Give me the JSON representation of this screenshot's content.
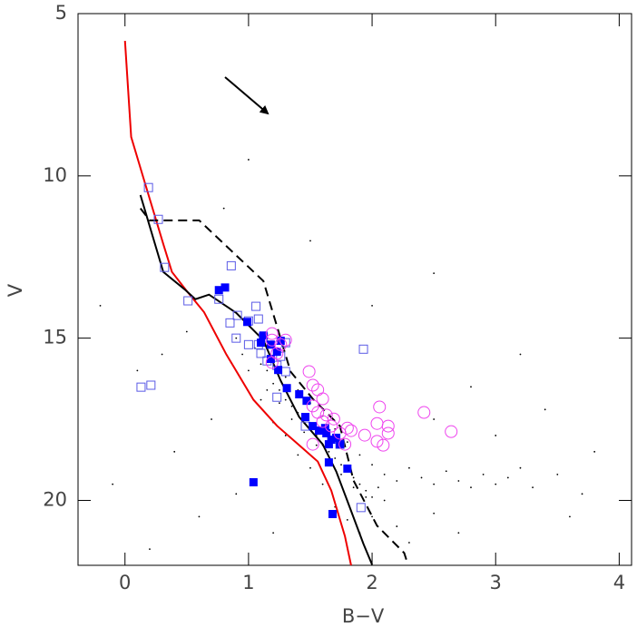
{
  "chart_data": {
    "type": "scatter",
    "x_label": "B−V",
    "y_label": "V",
    "xlim": [
      -0.38,
      4.1
    ],
    "ylim": [
      22,
      5
    ],
    "xticks": [
      0,
      1,
      2,
      3,
      4
    ],
    "yticks": [
      5,
      10,
      15,
      20
    ],
    "series": [
      {
        "color": "#000000",
        "marker": "dot",
        "x": [
          1.05,
          1.1,
          1.15,
          1.2,
          1.25,
          1.3,
          1.35,
          1.4,
          1.45,
          1.5,
          1.55,
          1.6,
          1.65,
          1.7,
          1.75,
          1.8,
          1.85,
          1.9,
          1.95,
          2.0,
          1.15,
          1.25,
          1.35,
          1.45,
          1.55,
          1.65,
          1.75,
          1.85,
          1.95,
          2.05,
          1.3,
          1.4,
          1.5,
          1.6,
          1.7,
          1.8,
          1.9,
          2.0,
          2.1,
          2.2,
          2.3,
          2.4,
          2.5,
          2.6,
          2.7,
          2.8,
          2.9,
          3.0,
          3.1,
          3.2,
          3.3,
          3.5,
          3.7,
          0.9,
          0.95,
          1.0,
          1.1,
          1.2,
          1.3,
          1.4,
          1.5,
          1.6,
          1.7,
          1.8,
          1.9,
          2.0,
          2.1,
          2.2,
          2.3,
          2.5,
          0.5,
          0.3,
          0.1,
          -0.2,
          0.7,
          0.4,
          0.9,
          0.6,
          1.2,
          2.5,
          2.8,
          3.0,
          3.4,
          3.8,
          2.0,
          1.5,
          0.8,
          2.5,
          3.2,
          1.0,
          3.6,
          -0.1,
          0.2,
          2.7
        ],
        "values": [
          15.3,
          15.8,
          16.0,
          16.4,
          16.6,
          16.9,
          17.1,
          17.3,
          17.6,
          17.8,
          18.0,
          18.3,
          18.5,
          18.7,
          18.9,
          19.1,
          19.3,
          19.5,
          19.7,
          19.9,
          16.6,
          17.0,
          17.5,
          17.9,
          18.3,
          18.8,
          19.2,
          19.6,
          19.9,
          19.6,
          16.2,
          16.6,
          17.0,
          17.4,
          17.8,
          18.2,
          18.6,
          18.9,
          19.2,
          19.4,
          19.0,
          19.3,
          19.5,
          19.1,
          19.4,
          19.6,
          19.2,
          19.5,
          19.3,
          19.0,
          19.6,
          19.2,
          19.8,
          15.0,
          15.5,
          16.0,
          16.9,
          17.6,
          18.0,
          18.6,
          19.0,
          19.5,
          20.2,
          20.6,
          21.0,
          20.5,
          20.0,
          20.8,
          21.3,
          20.4,
          14.8,
          15.5,
          16.0,
          14.0,
          17.5,
          18.5,
          19.8,
          20.5,
          21.0,
          17.5,
          16.5,
          18.0,
          17.2,
          18.5,
          14.0,
          12.0,
          11.0,
          13.0,
          15.5,
          9.5,
          20.5,
          19.5,
          21.5,
          21.0
        ]
      },
      {
        "color": "#ee0000",
        "line": "solid",
        "x": [
          0.0,
          0.05,
          0.16,
          0.31,
          0.38,
          0.49,
          0.64,
          0.82,
          1.04,
          1.23,
          1.41,
          1.56,
          1.67,
          1.78,
          1.83
        ],
        "values": [
          5.84,
          8.8,
          10.2,
          12.1,
          12.96,
          13.5,
          14.2,
          15.5,
          16.9,
          17.7,
          18.3,
          18.8,
          19.7,
          21.1,
          22.0
        ]
      },
      {
        "color": "#000000",
        "line": "solid",
        "x": [
          0.125,
          0.31,
          0.49,
          0.57,
          0.68,
          0.9,
          1.12,
          1.26,
          1.41,
          1.6,
          1.71,
          1.82,
          1.93,
          2.0
        ],
        "values": [
          10.59,
          12.96,
          13.52,
          13.8,
          13.66,
          14.22,
          15.06,
          16.31,
          17.43,
          18.27,
          19.11,
          20.22,
          21.34,
          21.98
        ]
      },
      {
        "color": "#000000",
        "line": "dashed",
        "x": [
          0.125,
          0.2,
          0.6,
          1.12,
          1.34,
          1.52,
          1.74,
          1.85,
          2.04,
          2.26,
          2.29
        ],
        "values": [
          11.0,
          11.37,
          11.37,
          13.24,
          16.03,
          16.87,
          17.71,
          19.39,
          20.78,
          21.62,
          21.98
        ]
      },
      {
        "color": "#5a5ae6",
        "marker": "open-square",
        "x": [
          0.19,
          0.27,
          0.32,
          0.51,
          0.86,
          0.76,
          0.85,
          0.91,
          1.06,
          1.0,
          1.08,
          0.9,
          1.0,
          1.08,
          1.12,
          1.1,
          1.15,
          1.23,
          1.23,
          1.3,
          1.26,
          1.3,
          0.13,
          0.21,
          1.93,
          1.91,
          1.46,
          1.74
        ],
        "values": [
          10.36,
          11.34,
          12.82,
          13.85,
          12.77,
          13.8,
          14.53,
          14.3,
          14.02,
          14.47,
          14.41,
          15.0,
          15.2,
          15.2,
          14.97,
          15.47,
          15.7,
          15.84,
          16.82,
          16.03,
          15.56,
          15.14,
          16.51,
          16.45,
          15.34,
          20.22,
          17.71,
          18.27
        ]
      },
      {
        "color": "#0000ff",
        "marker": "filled-square",
        "x": [
          0.76,
          0.81,
          0.99,
          1.12,
          1.1,
          1.18,
          1.26,
          1.18,
          1.24,
          1.23,
          1.31,
          1.41,
          1.47,
          1.46,
          1.52,
          1.57,
          1.63,
          1.67,
          1.71,
          1.65,
          1.74,
          1.65,
          1.8,
          1.04,
          1.68,
          1.62
        ],
        "values": [
          13.52,
          13.44,
          14.5,
          14.92,
          15.14,
          15.2,
          15.08,
          15.64,
          15.98,
          15.42,
          16.54,
          16.73,
          16.93,
          17.43,
          17.71,
          17.85,
          17.93,
          18.13,
          18.07,
          18.27,
          18.27,
          18.83,
          19.02,
          19.44,
          20.42,
          17.77
        ]
      },
      {
        "color": "#ee44ee",
        "marker": "open-circle",
        "x": [
          1.19,
          1.26,
          1.3,
          1.23,
          1.19,
          1.49,
          1.52,
          1.56,
          1.6,
          1.52,
          1.56,
          1.63,
          1.69,
          1.67,
          1.74,
          1.8,
          1.83,
          1.52,
          1.78,
          2.06,
          2.04,
          2.13,
          2.13,
          1.94,
          2.04,
          2.09,
          2.42,
          2.64,
          1.19,
          1.6
        ],
        "values": [
          15.06,
          15.2,
          15.06,
          15.47,
          15.75,
          16.03,
          16.45,
          16.59,
          16.87,
          17.09,
          17.29,
          17.37,
          17.49,
          17.71,
          17.93,
          17.77,
          17.85,
          18.27,
          18.27,
          17.12,
          17.63,
          17.71,
          17.93,
          17.99,
          18.18,
          18.3,
          17.29,
          17.88,
          14.86,
          17.57
        ]
      }
    ]
  }
}
